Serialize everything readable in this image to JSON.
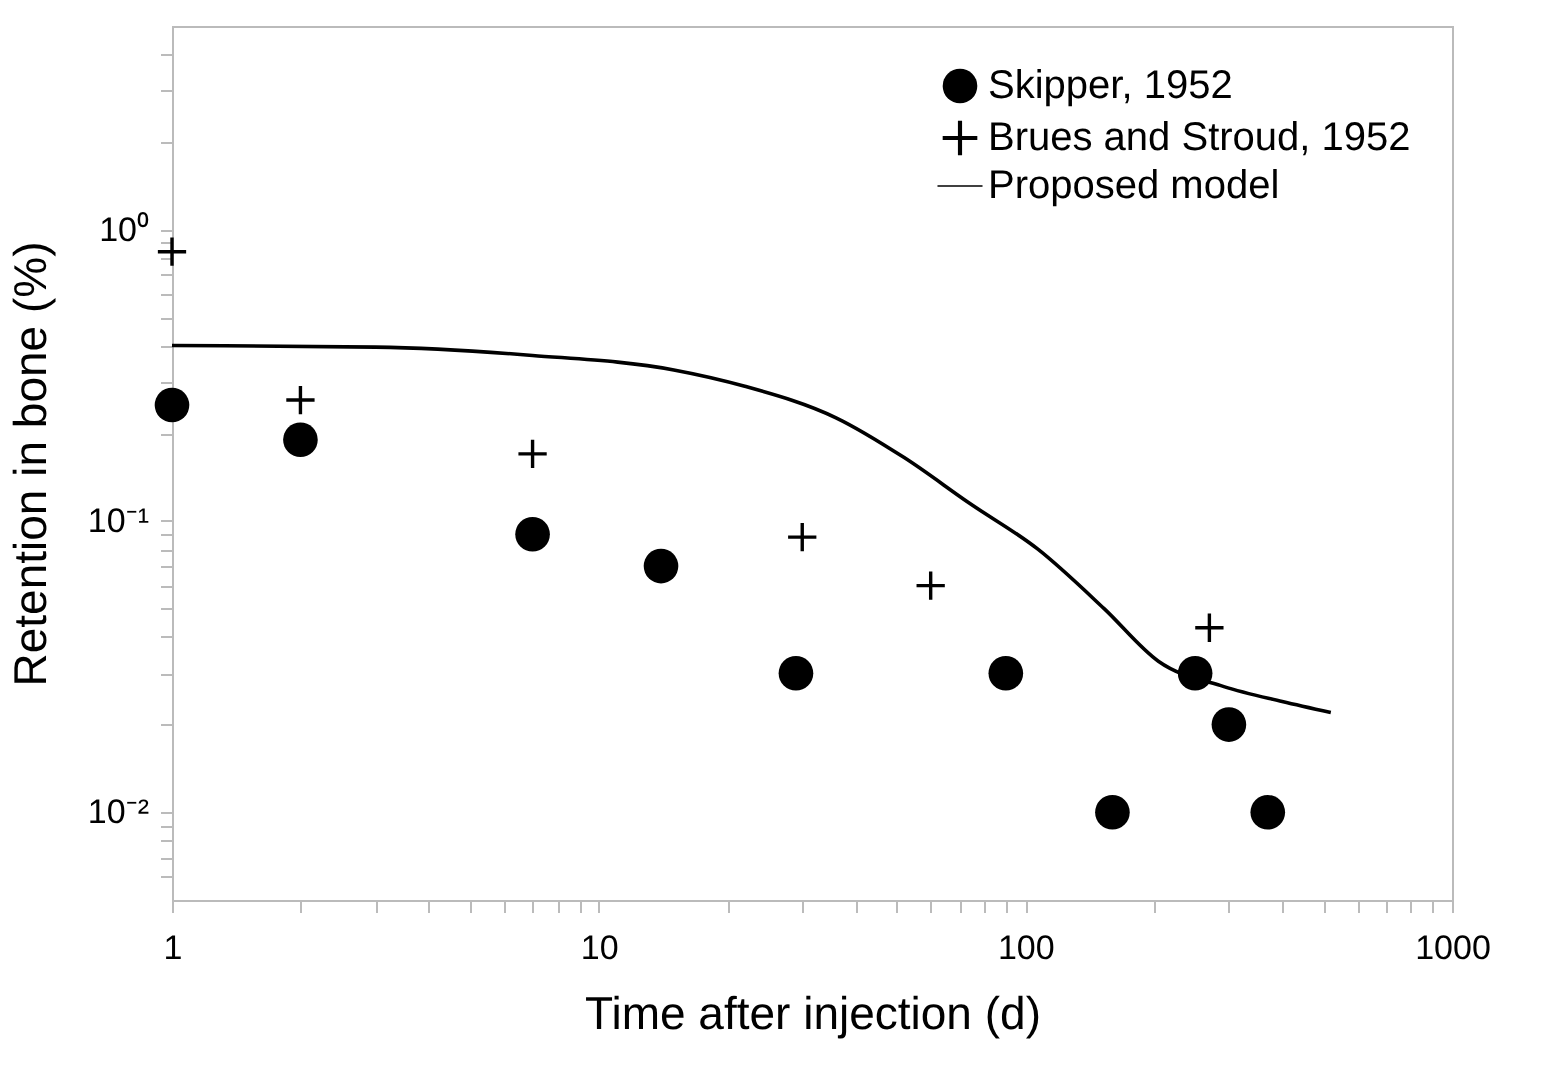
{
  "chart_data": {
    "type": "scatter",
    "xlabel": "Time after injection (d)",
    "ylabel": "Retention in bone (%)",
    "log": "xy",
    "xlim": [
      1,
      1000
    ],
    "ylim": [
      0.005,
      5
    ],
    "xticks": [
      1,
      {
        "value": 2,
        "label": null
      },
      {
        "value": 3,
        "label": null
      },
      {
        "value": 4,
        "label": null
      },
      {
        "value": 5,
        "label": null
      },
      {
        "value": 6,
        "label": null
      },
      {
        "value": 7,
        "label": null
      },
      {
        "value": 8,
        "label": null
      },
      {
        "value": 9,
        "label": null
      },
      10,
      {
        "value": 20,
        "label": null
      },
      {
        "value": 30,
        "label": null
      },
      {
        "value": 40,
        "label": null
      },
      {
        "value": 50,
        "label": null
      },
      {
        "value": 60,
        "label": null
      },
      {
        "value": 70,
        "label": null
      },
      {
        "value": 80,
        "label": null
      },
      {
        "value": 90,
        "label": null
      },
      100,
      {
        "value": 200,
        "label": null
      },
      {
        "value": 300,
        "label": null
      },
      {
        "value": 400,
        "label": null
      },
      {
        "value": 500,
        "label": null
      },
      {
        "value": 600,
        "label": null
      },
      {
        "value": 700,
        "label": null
      },
      {
        "value": 800,
        "label": null
      },
      {
        "value": 900,
        "label": null
      },
      1000
    ],
    "yticks": [
      {
        "value": 0.006,
        "label": null
      },
      {
        "value": 0.007,
        "label": null
      },
      {
        "value": 0.008,
        "label": null
      },
      {
        "value": 0.009,
        "label": null
      },
      {
        "value": 0.01,
        "label": "10⁻²"
      },
      {
        "value": 0.02,
        "label": null
      },
      {
        "value": 0.03,
        "label": null
      },
      {
        "value": 0.04,
        "label": null
      },
      {
        "value": 0.05,
        "label": null
      },
      {
        "value": 0.06,
        "label": null
      },
      {
        "value": 0.07,
        "label": null
      },
      {
        "value": 0.08,
        "label": null
      },
      {
        "value": 0.09,
        "label": null
      },
      {
        "value": 0.1,
        "label": "10⁻¹"
      },
      {
        "value": 0.2,
        "label": null
      },
      {
        "value": 0.3,
        "label": null
      },
      {
        "value": 0.4,
        "label": null
      },
      {
        "value": 0.5,
        "label": null
      },
      {
        "value": 0.6,
        "label": null
      },
      {
        "value": 0.7,
        "label": null
      },
      {
        "value": 0.8,
        "label": null
      },
      {
        "value": 0.9,
        "label": null
      },
      {
        "value": 1,
        "label": "10⁰"
      },
      {
        "value": 2,
        "label": null
      },
      {
        "value": 3,
        "label": null
      },
      {
        "value": 4,
        "label": null
      }
    ],
    "grid": false,
    "legend": "top right",
    "series": [
      {
        "name": "Skipper, 1952",
        "marker": "circle",
        "color": "#000000",
        "x": [
          1,
          2,
          7,
          14,
          29,
          90,
          160,
          250,
          300,
          370
        ],
        "values": [
          0.25,
          0.19,
          0.09,
          0.07,
          0.03,
          0.03,
          0.01,
          0.03,
          0.02,
          0.01
        ]
      },
      {
        "name": "Brues and Stroud, 1952",
        "marker": "cross",
        "color": "#000000",
        "x": [
          1,
          2,
          7,
          30,
          60,
          270
        ],
        "values": [
          0.84,
          0.26,
          0.17,
          0.088,
          0.06,
          0.043
        ]
      },
      {
        "name": "Proposed model",
        "type": "line",
        "line_style": "solid",
        "color": "#000000",
        "x": [
          1,
          3,
          7,
          15,
          22,
          36,
          52,
          74,
          107,
          153,
          205,
          292,
          400,
          520
        ],
        "values": [
          0.4,
          0.395,
          0.37,
          0.33,
          0.29,
          0.226,
          0.165,
          0.115,
          0.08,
          0.05,
          0.033,
          0.027,
          0.024,
          0.022
        ]
      }
    ]
  }
}
